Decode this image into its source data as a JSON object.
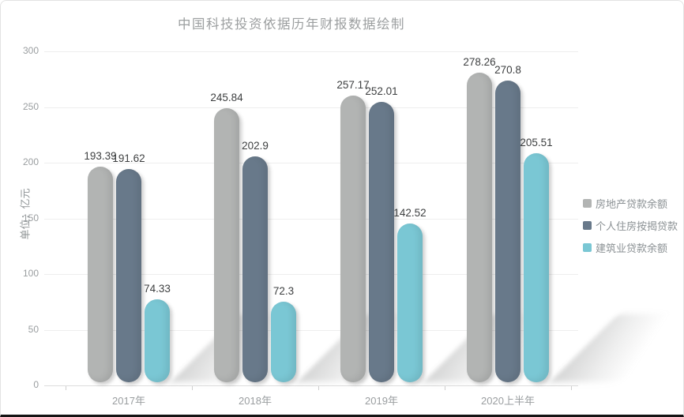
{
  "title": "中国科技投资依据历年财报数据绘制",
  "chart_data": {
    "type": "bar",
    "title": "中国科技投资依据历年财报数据绘制",
    "xlabel": "",
    "ylabel": "单位：亿元",
    "ylim": [
      0,
      300
    ],
    "ytick_step": 50,
    "yticks": [
      0,
      50,
      100,
      150,
      200,
      250,
      300
    ],
    "grid": true,
    "legend_position": "right",
    "value_labels": true,
    "categories": [
      "2017年",
      "2018年",
      "2019年",
      "2020上半年"
    ],
    "series": [
      {
        "name": "房地产贷款余额",
        "color": "#b2b4b3",
        "values": [
          193.39,
          245.84,
          257.17,
          278.26
        ]
      },
      {
        "name": "个人住房按揭贷款",
        "color": "#68798a",
        "values": [
          191.62,
          202.9,
          252.01,
          270.8
        ]
      },
      {
        "name": "建筑业贷款余额",
        "color": "#7ac7d4",
        "values": [
          74.33,
          72.3,
          142.52,
          205.51
        ]
      }
    ]
  },
  "colors": {
    "title_text": "#9c9fa0",
    "axis_text": "#9a9ea0",
    "value_text": "#3d3f40",
    "gridline": "#eeeeee",
    "baseline": "#dcdcdc"
  }
}
